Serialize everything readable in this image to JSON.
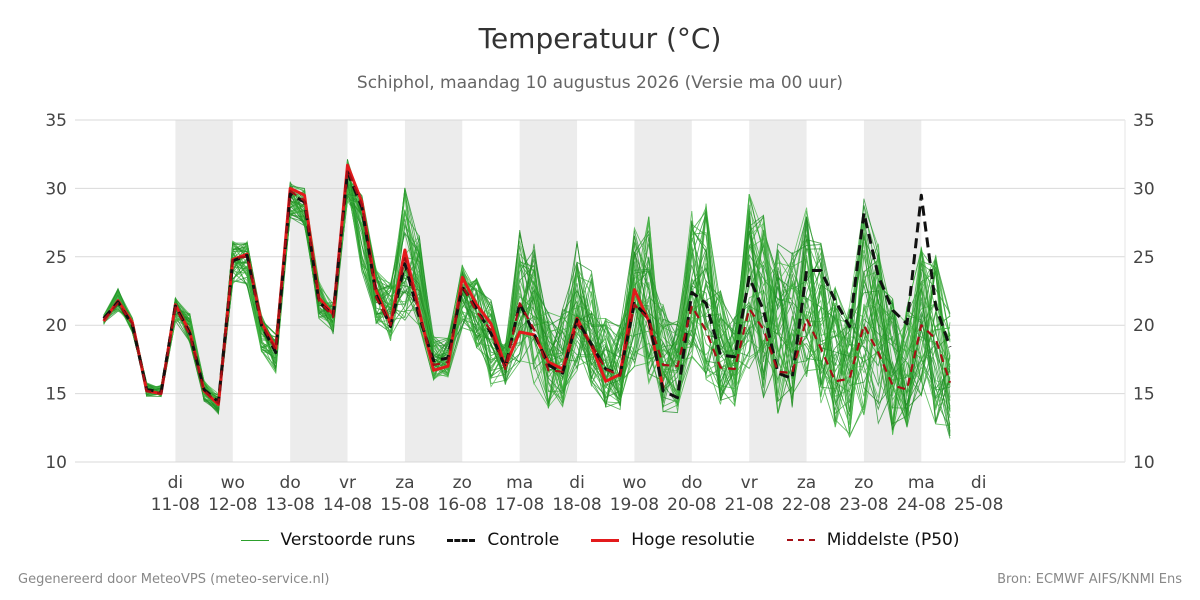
{
  "title": "Temperatuur (°C)",
  "subtitle": "Schiphol, maandag 10 augustus 2026 (Versie ma 00 uur)",
  "footer_left": "Gegenereerd door MeteoVPS (meteo-service.nl)",
  "footer_right": "Bron: ECMWF AIFS/KNMI Ens",
  "legend": [
    {
      "key": "ens",
      "label": "Verstoorde runs",
      "color": "#2ca02c",
      "style": "thin"
    },
    {
      "key": "ctrl",
      "label": "Controle",
      "color": "#111111",
      "style": "dashed"
    },
    {
      "key": "hres",
      "label": "Hoge resolutie",
      "color": "#e31a1c",
      "style": "solid"
    },
    {
      "key": "p50",
      "label": "Middelste (P50)",
      "color": "#a50f15",
      "style": "dashed"
    }
  ],
  "chart_data": {
    "type": "line",
    "title": "Temperatuur (°C)",
    "ylabel": "",
    "xlabel": "",
    "ylim": [
      10,
      35
    ],
    "yticks": [
      10,
      15,
      20,
      25,
      30,
      35
    ],
    "grid": true,
    "legend_position": "bottom",
    "x_step_hours": 6,
    "x_range_steps": [
      -7.0,
      66.2
    ],
    "day_ticks": [
      {
        "day": "di",
        "date": "11-08"
      },
      {
        "day": "wo",
        "date": "12-08"
      },
      {
        "day": "do",
        "date": "13-08"
      },
      {
        "day": "vr",
        "date": "14-08"
      },
      {
        "day": "za",
        "date": "15-08"
      },
      {
        "day": "zo",
        "date": "16-08"
      },
      {
        "day": "ma",
        "date": "17-08"
      },
      {
        "day": "di",
        "date": "18-08"
      },
      {
        "day": "wo",
        "date": "19-08"
      },
      {
        "day": "do",
        "date": "20-08"
      },
      {
        "day": "vr",
        "date": "21-08"
      },
      {
        "day": "za",
        "date": "22-08"
      },
      {
        "day": "zo",
        "date": "23-08"
      },
      {
        "day": "ma",
        "date": "24-08"
      },
      {
        "day": "di",
        "date": "25-08"
      }
    ],
    "shaded_days": [
      0,
      2,
      4,
      6,
      8,
      10,
      12
    ],
    "series": [
      {
        "name": "Hoge resolutie",
        "start_step": -5,
        "values": [
          20.3,
          21.8,
          20.2,
          15.2,
          15.0,
          21.5,
          19.5,
          15.2,
          14.2,
          24.8,
          25.2,
          20.2,
          18.3,
          30.0,
          29.5,
          22.0,
          20.8,
          31.7,
          29.0,
          22.5,
          20.1,
          25.5,
          21.0,
          16.7,
          17.0,
          23.5,
          21.5,
          20.1,
          17.0,
          19.5,
          19.3,
          17.3,
          16.8,
          20.5,
          18.5,
          15.9,
          16.4,
          22.6,
          20.3,
          15.4
        ]
      },
      {
        "name": "Controle",
        "start_step": -5,
        "values": [
          20.5,
          21.7,
          20.0,
          15.3,
          15.1,
          21.4,
          19.4,
          15.3,
          14.4,
          24.7,
          25.1,
          20.0,
          18.0,
          29.6,
          29.0,
          21.7,
          20.7,
          31.2,
          28.6,
          22.2,
          19.9,
          24.5,
          20.6,
          17.4,
          17.6,
          22.8,
          21.2,
          19.4,
          16.9,
          21.6,
          19.4,
          17.1,
          16.5,
          20.4,
          18.6,
          16.8,
          16.4,
          21.6,
          20.5,
          15.2,
          14.7,
          22.4,
          21.6,
          17.8,
          17.7,
          23.5,
          21.1,
          16.5,
          16.1,
          24.0,
          24.0,
          21.8,
          19.9,
          28.2,
          23.6,
          21.1,
          20.1,
          29.5,
          21.4,
          18.4
        ]
      },
      {
        "name": "Middelste (P50)",
        "start_step": -5,
        "values": [
          20.4,
          21.6,
          20.1,
          15.2,
          15.0,
          21.3,
          19.3,
          15.2,
          14.3,
          24.9,
          25.0,
          20.1,
          18.2,
          29.8,
          29.1,
          21.8,
          20.6,
          31.4,
          28.8,
          22.0,
          20.0,
          24.9,
          20.9,
          17.1,
          17.3,
          22.9,
          21.0,
          19.6,
          16.8,
          21.6,
          19.7,
          16.7,
          16.6,
          20.1,
          18.6,
          16.8,
          16.3,
          21.5,
          20.4,
          17.1,
          17.0,
          21.4,
          19.6,
          16.9,
          16.8,
          21.2,
          19.7,
          16.6,
          16.5,
          20.5,
          18.3,
          15.9,
          16.1,
          20.0,
          18.0,
          15.6,
          15.3,
          20.0,
          19.0,
          15.8
        ]
      }
    ],
    "ensemble": {
      "name": "Verstoorde runs",
      "start_step": -5,
      "members": 50,
      "min": [
        19.9,
        20.6,
        19.2,
        14.6,
        14.6,
        19.8,
        18.1,
        14.1,
        13.2,
        22.2,
        22.1,
        17.3,
        15.8,
        27.2,
        26.6,
        19.9,
        18.8,
        28.4,
        22.5,
        19.2,
        18.7,
        20.1,
        19.4,
        16.0,
        16.1,
        19.8,
        18.3,
        15.4,
        15.6,
        16.7,
        15.7,
        13.9,
        14.0,
        16.6,
        15.3,
        13.9,
        13.6,
        16.9,
        15.6,
        13.6,
        13.6,
        17.5,
        16.0,
        14.2,
        13.8,
        16.5,
        14.5,
        13.5,
        13.6,
        16.2,
        14.3,
        12.5,
        11.8,
        13.2,
        12.7,
        11.9,
        12.3,
        14.5,
        12.6,
        11.7
      ],
      "max": [
        20.9,
        23.1,
        20.8,
        16.0,
        15.8,
        22.4,
        21.4,
        16.3,
        15.3,
        27.2,
        26.9,
        21.5,
        20.1,
        31.1,
        30.6,
        23.8,
        22.3,
        32.8,
        31.3,
        25.0,
        23.1,
        30.5,
        26.6,
        19.3,
        19.1,
        24.5,
        23.5,
        21.9,
        18.8,
        27.0,
        26.0,
        21.1,
        21.5,
        26.7,
        24.0,
        20.7,
        20.1,
        27.5,
        28.0,
        21.5,
        20.5,
        28.8,
        28.9,
        22.9,
        20.7,
        29.7,
        28.2,
        26.0,
        25.6,
        29.3,
        26.2,
        22.8,
        21.5,
        29.3,
        26.8,
        22.1,
        21.6,
        26.1,
        25.2,
        20.9
      ]
    }
  }
}
